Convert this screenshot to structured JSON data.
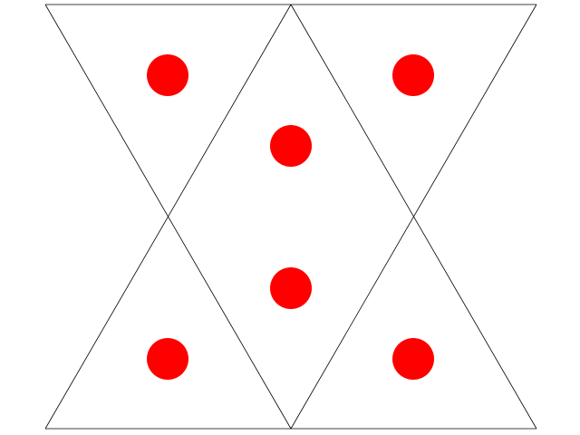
{
  "diagram": {
    "description_type": "geometric-figure",
    "triangles": [
      {
        "id": "top-left",
        "orientation": "down"
      },
      {
        "id": "top-right",
        "orientation": "down"
      },
      {
        "id": "center-up",
        "orientation": "up"
      },
      {
        "id": "center-down",
        "orientation": "down"
      },
      {
        "id": "bottom-left",
        "orientation": "up"
      },
      {
        "id": "bottom-right",
        "orientation": "up"
      }
    ],
    "dot_count": 6,
    "colors": {
      "background": "#ffffff",
      "line": "#000000",
      "dot": "#ff0000"
    }
  }
}
